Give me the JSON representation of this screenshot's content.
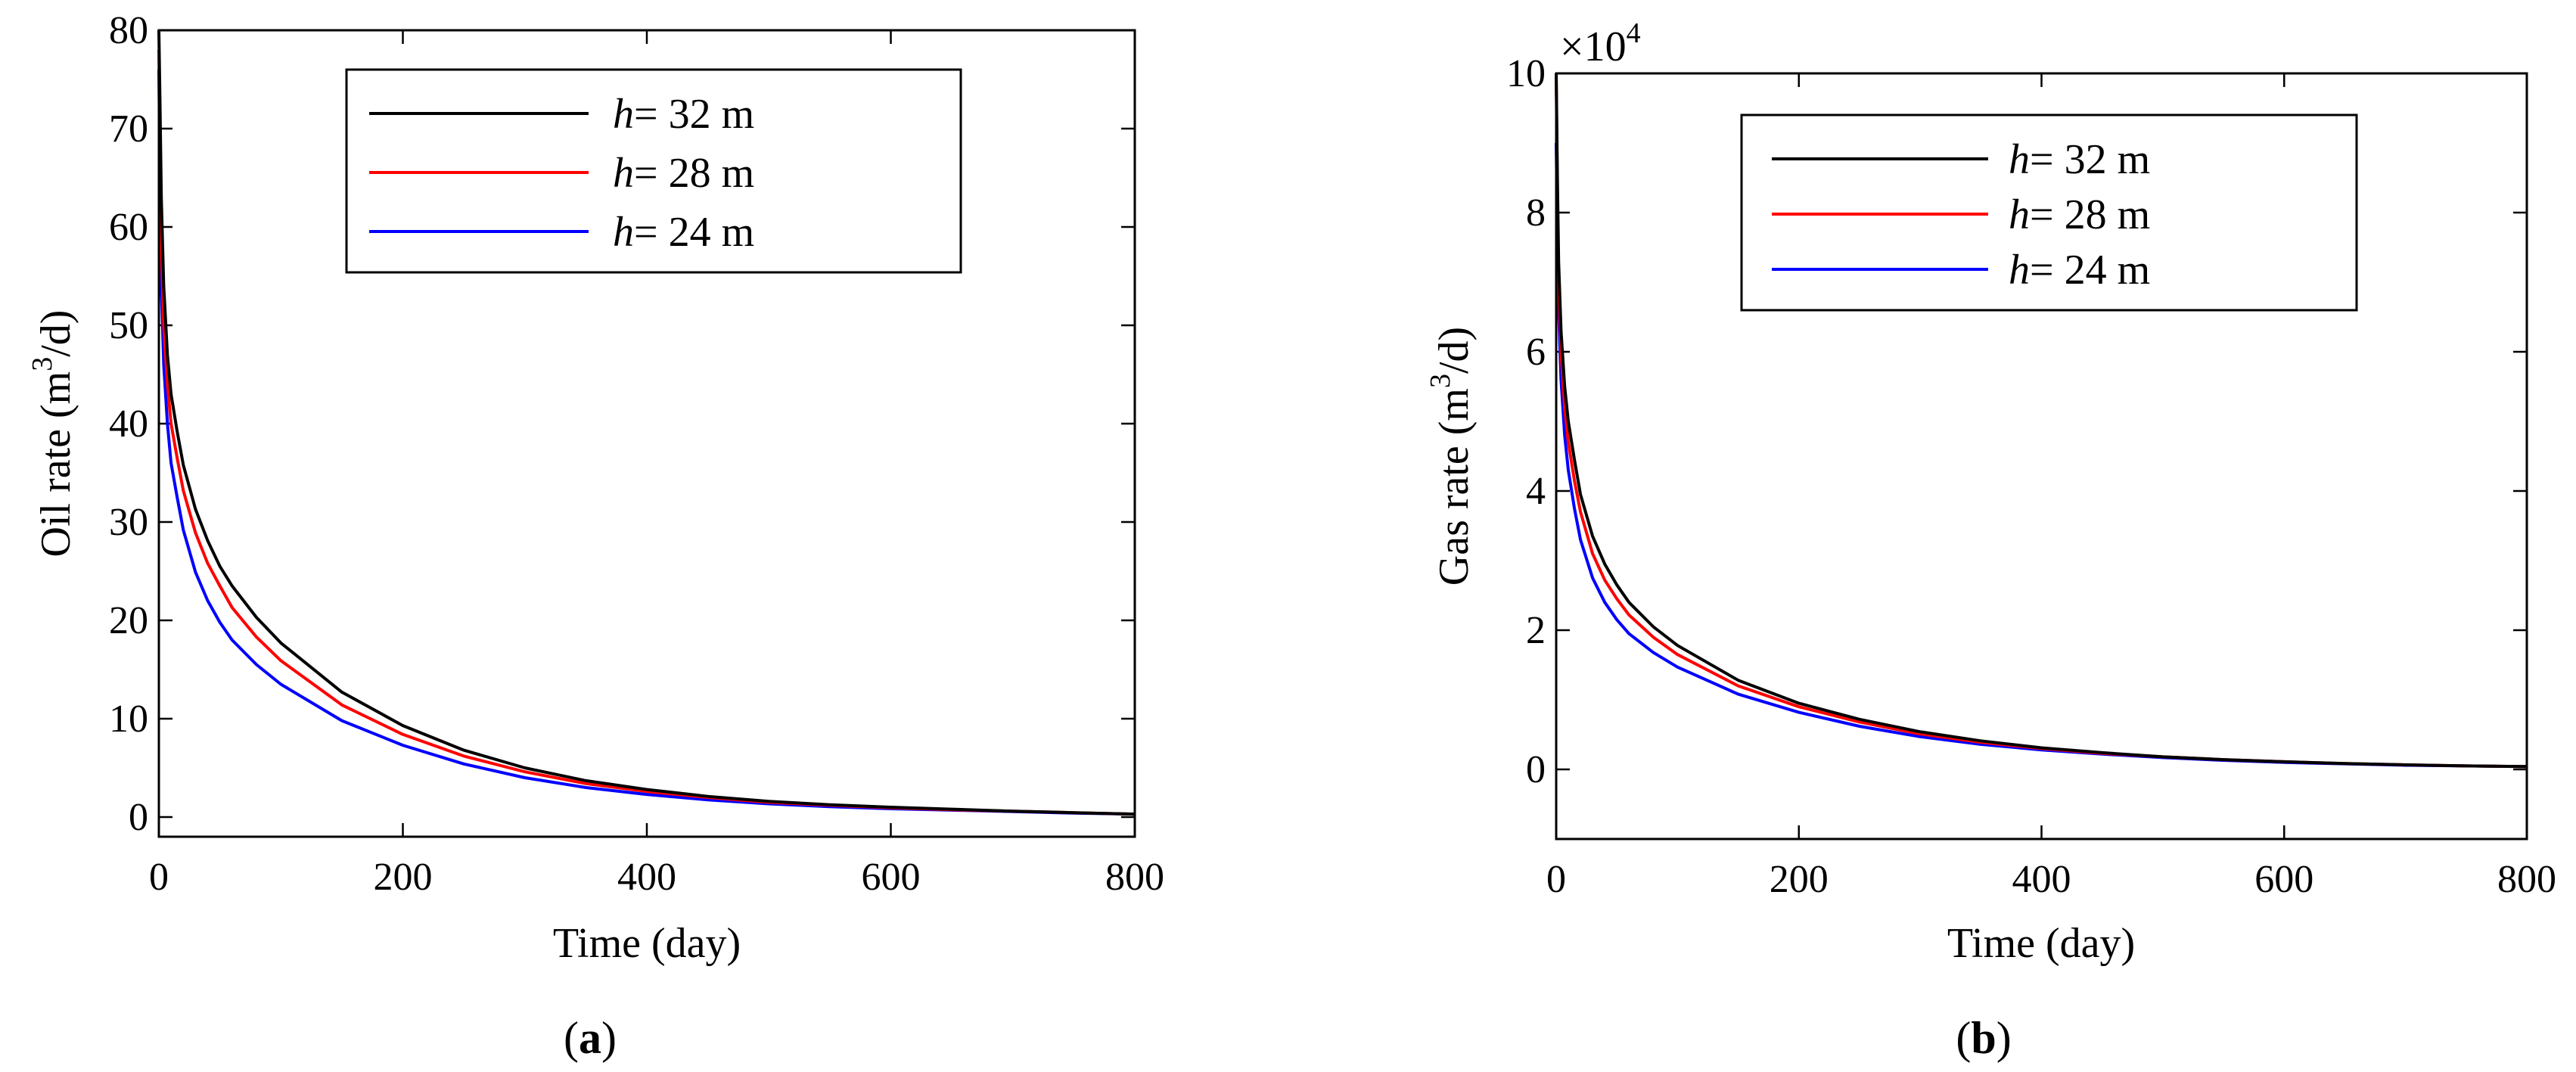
{
  "chart_data": [
    {
      "type": "line",
      "panel_label": "a",
      "title": "",
      "xlabel": "Time (day)",
      "ylabel": {
        "prefix": "Oil rate (m",
        "sup": "3",
        "suffix": "/d)"
      },
      "xlim": [
        0,
        800
      ],
      "ylim": [
        -2,
        80
      ],
      "xticks": [
        "0",
        "200",
        "400",
        "600",
        "800"
      ],
      "yticks": [
        "0",
        "10",
        "20",
        "30",
        "40",
        "50",
        "60",
        "70",
        "80"
      ],
      "grid": false,
      "legend_position": "top-center",
      "x": [
        0,
        1,
        2,
        4,
        7,
        10,
        15,
        20,
        30,
        40,
        50,
        60,
        80,
        100,
        150,
        200,
        250,
        300,
        350,
        400,
        450,
        500,
        550,
        600,
        650,
        700,
        750,
        800
      ],
      "series": [
        {
          "name": "32 m",
          "var": "h",
          "color": "#000000",
          "values": [
            80,
            72,
            63,
            54,
            47,
            43,
            39.2,
            35.8,
            31.3,
            28.1,
            25.5,
            23.5,
            20.3,
            17.7,
            12.7,
            9.3,
            6.8,
            5.0,
            3.7,
            2.8,
            2.1,
            1.6,
            1.25,
            1.0,
            0.8,
            0.6,
            0.45,
            0.3
          ]
        },
        {
          "name": "28 m",
          "var": "h",
          "color": "#ff0000",
          "values": [
            78,
            68,
            58,
            50,
            44,
            40,
            36.5,
            33.2,
            28.9,
            25.8,
            23.5,
            21.3,
            18.3,
            15.9,
            11.4,
            8.4,
            6.2,
            4.6,
            3.4,
            2.6,
            2.0,
            1.5,
            1.2,
            0.95,
            0.75,
            0.6,
            0.45,
            0.3
          ]
        },
        {
          "name": "24 m",
          "var": "h",
          "color": "#0000ff",
          "values": [
            76,
            64,
            54,
            46,
            40,
            36,
            32.5,
            29.2,
            24.9,
            22.0,
            19.8,
            18.0,
            15.5,
            13.5,
            9.8,
            7.3,
            5.4,
            4.0,
            3.0,
            2.3,
            1.75,
            1.35,
            1.05,
            0.85,
            0.7,
            0.55,
            0.4,
            0.3
          ]
        }
      ]
    },
    {
      "type": "line",
      "panel_label": "b",
      "title": "",
      "xlabel": "Time (day)",
      "ylabel": {
        "prefix": "Gas rate (m",
        "sup": "3",
        "suffix": "/d)"
      },
      "multiplier": {
        "base": "×10",
        "exp": "4"
      },
      "xlim": [
        0,
        800
      ],
      "ylim": [
        -1,
        10
      ],
      "xticks": [
        "0",
        "200",
        "400",
        "600",
        "800"
      ],
      "yticks": [
        "0",
        "2",
        "4",
        "6",
        "8",
        "10"
      ],
      "grid": false,
      "legend_position": "top-center",
      "x": [
        0,
        1,
        2,
        4,
        7,
        10,
        15,
        20,
        30,
        40,
        50,
        60,
        80,
        100,
        150,
        200,
        250,
        300,
        350,
        400,
        450,
        500,
        550,
        600,
        650,
        700,
        750,
        800
      ],
      "series": [
        {
          "name": "32 m",
          "var": "h",
          "color": "#000000",
          "values": [
            10,
            8.5,
            7.3,
            6.3,
            5.5,
            5.0,
            4.45,
            3.95,
            3.35,
            2.95,
            2.65,
            2.4,
            2.05,
            1.78,
            1.28,
            0.95,
            0.72,
            0.54,
            0.41,
            0.31,
            0.24,
            0.18,
            0.14,
            0.11,
            0.085,
            0.065,
            0.05,
            0.04
          ]
        },
        {
          "name": "28 m",
          "var": "h",
          "color": "#ff0000",
          "values": [
            10,
            8.2,
            7.0,
            6.0,
            5.2,
            4.7,
            4.15,
            3.7,
            3.1,
            2.72,
            2.45,
            2.22,
            1.9,
            1.65,
            1.2,
            0.9,
            0.68,
            0.51,
            0.39,
            0.3,
            0.23,
            0.18,
            0.14,
            0.11,
            0.085,
            0.065,
            0.05,
            0.04
          ]
        },
        {
          "name": "24 m",
          "var": "h",
          "color": "#0000ff",
          "values": [
            9.0,
            7.8,
            6.6,
            5.6,
            4.8,
            4.3,
            3.75,
            3.3,
            2.75,
            2.4,
            2.15,
            1.95,
            1.68,
            1.47,
            1.08,
            0.82,
            0.62,
            0.47,
            0.36,
            0.28,
            0.22,
            0.17,
            0.13,
            0.1,
            0.08,
            0.06,
            0.05,
            0.04
          ]
        }
      ]
    }
  ]
}
